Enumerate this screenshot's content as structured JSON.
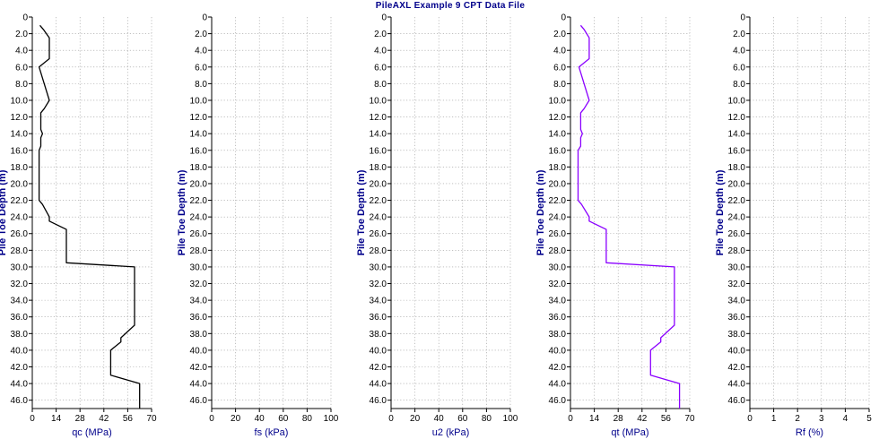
{
  "chart_data": {
    "type": "line",
    "title": "PileAXL Example 9 CPT Data File",
    "ylabel": "Pile Toe Depth (m)",
    "y_ticks": [
      "0",
      "2.0",
      "4.0",
      "6.0",
      "8.0",
      "10.0",
      "12.0",
      "14.0",
      "16.0",
      "18.0",
      "20.0",
      "22.0",
      "24.0",
      "26.0",
      "28.0",
      "30.0",
      "32.0",
      "34.0",
      "36.0",
      "38.0",
      "40.0",
      "42.0",
      "44.0",
      "46.0"
    ],
    "ylim": [
      0,
      47
    ],
    "y_inverted": true,
    "grid": true,
    "panels": [
      {
        "xlabel": "qc (MPa)",
        "xlim": [
          0,
          70
        ],
        "x_ticks": [
          "0",
          "14",
          "28",
          "42",
          "56",
          "70"
        ],
        "color": "#000000",
        "series": [
          {
            "points": [
              [
                4.5,
                1.0
              ],
              [
                6.5,
                1.5
              ],
              [
                10,
                2.5
              ],
              [
                10,
                5.0
              ],
              [
                7,
                5.5
              ],
              [
                4,
                6.0
              ],
              [
                7,
                8.0
              ],
              [
                10,
                10.0
              ],
              [
                7,
                11.0
              ],
              [
                5,
                11.5
              ],
              [
                5,
                13.5
              ],
              [
                6,
                14.0
              ],
              [
                5,
                14.5
              ],
              [
                5,
                15.5
              ],
              [
                4,
                16.0
              ],
              [
                4,
                22.0
              ],
              [
                6,
                22.5
              ],
              [
                10,
                24.0
              ],
              [
                10,
                24.5
              ],
              [
                20,
                25.5
              ],
              [
                20,
                29.5
              ],
              [
                60,
                30.0
              ],
              [
                60,
                37.0
              ],
              [
                52,
                38.5
              ],
              [
                52,
                39.0
              ],
              [
                46,
                40.0
              ],
              [
                46,
                43.0
              ],
              [
                63,
                44.0
              ],
              [
                63,
                47.0
              ]
            ]
          }
        ]
      },
      {
        "xlabel": "fs (kPa)",
        "xlim": [
          0,
          100
        ],
        "x_ticks": [
          "0",
          "20",
          "40",
          "60",
          "80",
          "100"
        ],
        "color": "#000000",
        "series": []
      },
      {
        "xlabel": "u2 (kPa)",
        "xlim": [
          0,
          100
        ],
        "x_ticks": [
          "0",
          "20",
          "40",
          "60",
          "80",
          "100"
        ],
        "color": "#000000",
        "series": []
      },
      {
        "xlabel": "qt (MPa)",
        "xlim": [
          0,
          70
        ],
        "x_ticks": [
          "0",
          "14",
          "28",
          "42",
          "56",
          "70"
        ],
        "color": "#8a00ff",
        "series": [
          {
            "points": [
              [
                6,
                1.0
              ],
              [
                8,
                1.5
              ],
              [
                11,
                2.5
              ],
              [
                11,
                5.0
              ],
              [
                8,
                5.5
              ],
              [
                5,
                6.0
              ],
              [
                8,
                8.0
              ],
              [
                11,
                10.0
              ],
              [
                8,
                11.0
              ],
              [
                6,
                11.5
              ],
              [
                6,
                13.5
              ],
              [
                7,
                14.0
              ],
              [
                6,
                14.5
              ],
              [
                6,
                15.5
              ],
              [
                4.5,
                16.0
              ],
              [
                4.5,
                22.0
              ],
              [
                6.5,
                22.5
              ],
              [
                11,
                24.0
              ],
              [
                11,
                24.5
              ],
              [
                21,
                25.5
              ],
              [
                21,
                29.5
              ],
              [
                61,
                30.0
              ],
              [
                61,
                37.0
              ],
              [
                53,
                38.5
              ],
              [
                53,
                39.0
              ],
              [
                47,
                40.0
              ],
              [
                47,
                43.0
              ],
              [
                64,
                44.0
              ],
              [
                64,
                47.0
              ]
            ]
          }
        ]
      },
      {
        "xlabel": "Rf (%)",
        "xlim": [
          0,
          5
        ],
        "x_ticks": [
          "0",
          "1",
          "2",
          "3",
          "4",
          "5"
        ],
        "color": "#000000",
        "series": []
      }
    ]
  }
}
